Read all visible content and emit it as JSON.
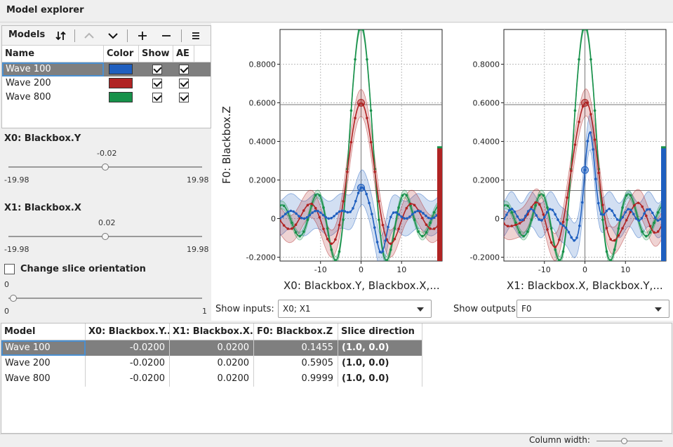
{
  "window": {
    "title": "Model explorer"
  },
  "models_panel": {
    "label": "Models",
    "toolbar_icons": [
      "sort-icon",
      "chevron-up-icon",
      "chevron-down-icon",
      "plus-icon",
      "minus-icon",
      "menu-icon"
    ],
    "columns": [
      "Name",
      "Color",
      "Show",
      "AE"
    ],
    "rows": [
      {
        "name": "Wave 100",
        "color": "#1f5fbf",
        "show": true,
        "ae": true,
        "selected": true
      },
      {
        "name": "Wave 200",
        "color": "#b02323",
        "show": true,
        "ae": true,
        "selected": false
      },
      {
        "name": "Wave 800",
        "color": "#17914a",
        "show": true,
        "ae": true,
        "selected": false
      }
    ]
  },
  "sliders": [
    {
      "title": "X0: Blackbox.Y",
      "value": "-0.02",
      "min": "-19.98",
      "max": "19.98",
      "position": 0.5
    },
    {
      "title": "X1: Blackbox.X",
      "value": "0.02",
      "min": "-19.98",
      "max": "19.98",
      "position": 0.5
    }
  ],
  "orientation": {
    "label": "Change slice orientation",
    "checked": false,
    "value": "0",
    "min": "0",
    "max": "1",
    "position": 0.0
  },
  "plots": [
    {
      "xlabel": "X0: Blackbox.Y, Blackbox.X,...",
      "ylabel": "F0: Blackbox.Z",
      "yticks": [
        "0.8000",
        "0.6000",
        "0.4000",
        "0.2000",
        "0",
        "-0.2000"
      ],
      "xticks": [
        "-10",
        "0",
        "10"
      ],
      "xlim": [
        -20,
        20
      ],
      "ylim": [
        -0.22,
        0.98
      ]
    },
    {
      "xlabel": "X1: Blackbox.X, Blackbox.Y,...",
      "yticks": [
        "0.8000",
        "0.6000",
        "0.4000",
        "0.2000",
        "0",
        "-0.2000"
      ],
      "xticks": [
        "-10",
        "0",
        "10"
      ],
      "xlim": [
        -20,
        20
      ],
      "ylim": [
        -0.22,
        0.98
      ]
    }
  ],
  "selectors": {
    "inputs_label": "Show inputs:",
    "inputs_value": "X0; X1",
    "outputs_label": "Show outputs:",
    "outputs_value": "F0"
  },
  "table": {
    "columns": [
      "Model",
      "X0: Blackbox.Y...",
      "X1: Blackbox.X...",
      "F0: Blackbox.Z",
      "Slice direction"
    ],
    "rows": [
      {
        "model": "Wave 100",
        "x0": "-0.0200",
        "x1": "0.0200",
        "f0": "0.1455",
        "dir": "(1.0, 0.0)",
        "selected": true
      },
      {
        "model": "Wave 200",
        "x0": "-0.0200",
        "x1": "0.0200",
        "f0": "0.5905",
        "dir": "(1.0, 0.0)",
        "selected": false
      },
      {
        "model": "Wave 800",
        "x0": "-0.0200",
        "x1": "0.0200",
        "f0": "0.9999",
        "dir": "(1.0, 0.0)",
        "selected": false
      }
    ]
  },
  "status": {
    "column_width_label": "Column width:"
  }
}
